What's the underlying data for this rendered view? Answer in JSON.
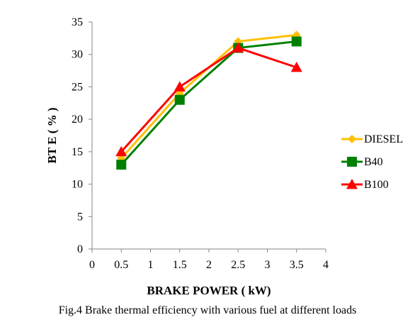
{
  "chart_data": {
    "type": "line",
    "title": "",
    "xlabel": "BRAKE POWER ( kW)",
    "ylabel": "BT E ( % )",
    "xlim": [
      0,
      4
    ],
    "ylim": [
      0,
      35
    ],
    "xticks": [
      "0",
      "0.5",
      "1",
      "1.5",
      "2",
      "2.5",
      "3",
      "3.5",
      "4"
    ],
    "yticks": [
      "0",
      "5",
      "10",
      "15",
      "20",
      "25",
      "30",
      "35"
    ],
    "grid": false,
    "legend_position": "right",
    "x": [
      0.5,
      1.5,
      2.5,
      3.5
    ],
    "series": [
      {
        "name": "DIESEL",
        "values": [
          14,
          24,
          32,
          33
        ],
        "color": "#FFC000",
        "marker": "diamond"
      },
      {
        "name": "B40",
        "values": [
          13,
          23,
          31,
          32
        ],
        "color": "#008000",
        "marker": "square"
      },
      {
        "name": "B100",
        "values": [
          15,
          25,
          31,
          28
        ],
        "color": "#FF0000",
        "marker": "triangle"
      }
    ]
  },
  "caption": "Fig.4 Brake thermal efficiency with various fuel at different loads"
}
